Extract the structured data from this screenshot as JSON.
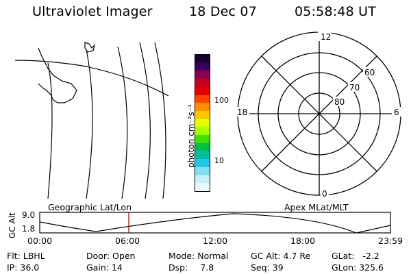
{
  "header": {
    "instrument": "Ultraviolet Imager",
    "date": "18 Dec 07",
    "time": "05:58:48 UT"
  },
  "left_panel": {
    "label": "Geographic Lat/Lon"
  },
  "colorbar": {
    "unit_label": "photon cm⁻²s⁻¹",
    "ticks": [
      "100",
      "10"
    ],
    "colors": [
      "#1a0033",
      "#3a0060",
      "#8b0050",
      "#c8001e",
      "#e20000",
      "#ff4000",
      "#ff8c00",
      "#ffc800",
      "#e6ff00",
      "#a8ff00",
      "#40e000",
      "#00c040",
      "#00c0a0",
      "#20c8e8",
      "#80e0f0",
      "#c8f0f8",
      "#e6f8fc"
    ]
  },
  "polar_plot": {
    "label": "Apex MLat/MLT",
    "mlt_labels": {
      "top": "12",
      "left": "18",
      "right": "6",
      "bottom": "0"
    },
    "mlat_labels": [
      "60",
      "70",
      "80"
    ]
  },
  "timeline": {
    "y_axis_label": "GC Alt",
    "y_ticks": [
      "9.0",
      "1.8"
    ],
    "x_ticks": [
      "00:00",
      "06:00",
      "12:00",
      "18:00",
      "23:59"
    ],
    "current_time_marker": "05:58",
    "marker_color": "#c00000"
  },
  "status": {
    "row1": [
      {
        "label": "Flt:",
        "value": "LBHL"
      },
      {
        "label": "Door:",
        "value": "Open"
      },
      {
        "label": "Mode:",
        "value": "Normal"
      },
      {
        "label": "GC Alt:",
        "value": "4.7 Re"
      },
      {
        "label": "GLat:",
        "value": "-2.2"
      }
    ],
    "row2": [
      {
        "label": "IP:",
        "value": "36.0"
      },
      {
        "label": "Gain:",
        "value": "14"
      },
      {
        "label": "Dsp:",
        "value": "7.8"
      },
      {
        "label": "Seq:",
        "value": "39"
      },
      {
        "label": "GLon:",
        "value": "325.6"
      }
    ]
  }
}
